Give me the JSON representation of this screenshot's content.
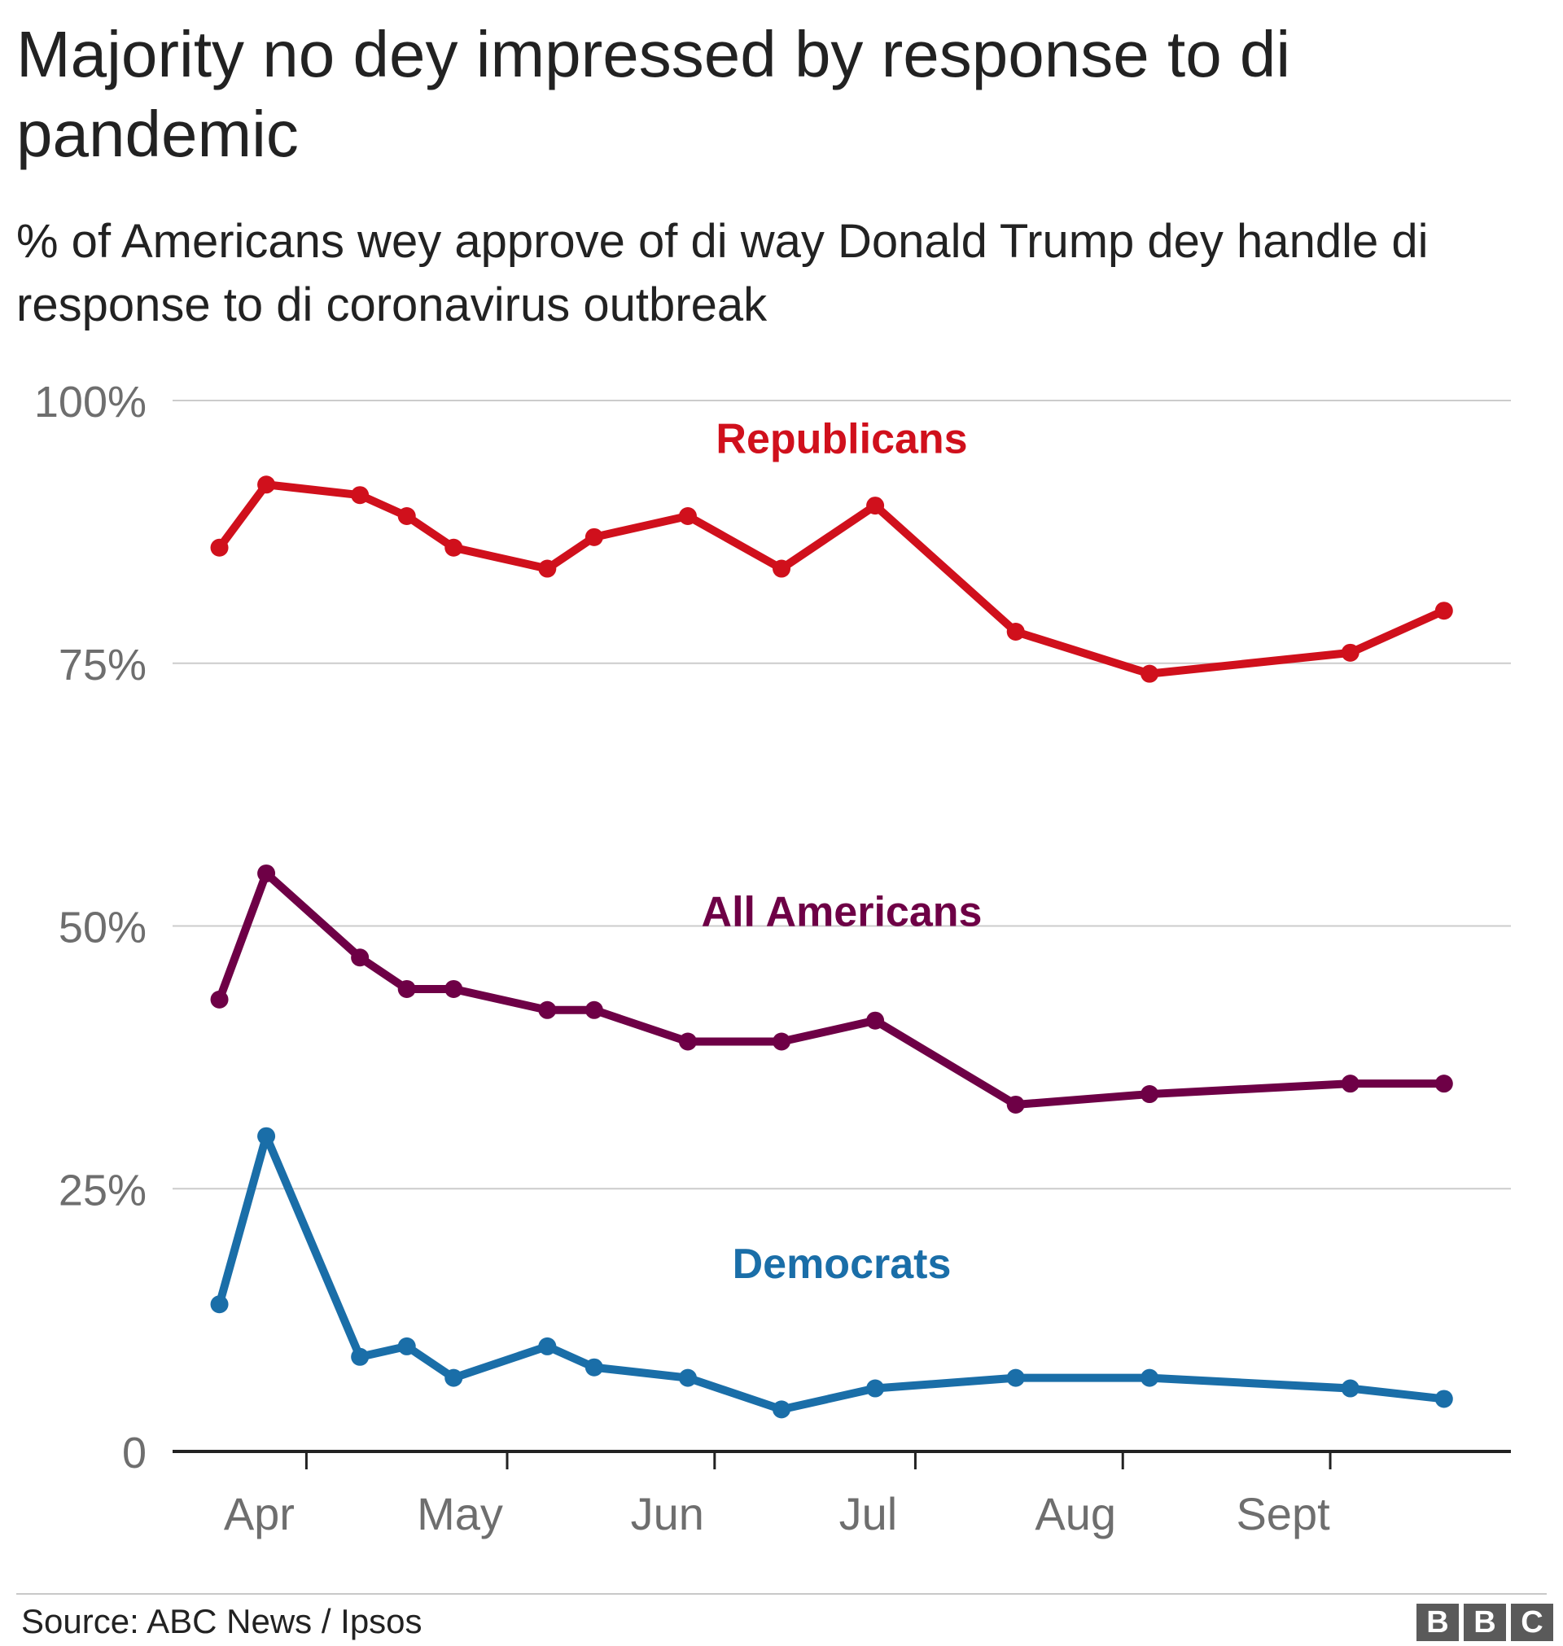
{
  "title": "Majority no dey impressed by response to di pandemic",
  "subtitle": "% of Americans wey approve of di way Donald Trump dey handle di response to di coronavirus outbreak",
  "source": "Source: ABC News / Ipsos",
  "logo": [
    "B",
    "B",
    "C"
  ],
  "chart_data": {
    "type": "line",
    "title": "Majority no dey impressed by response to di pandemic",
    "subtitle": "% of Americans wey approve of di way Donald Trump dey handle di response to di coronavirus outbreak",
    "xlabel": "",
    "ylabel": "",
    "ylim": [
      0,
      100
    ],
    "yticks": [
      0,
      25,
      50,
      75,
      100
    ],
    "ytick_labels": [
      "0",
      "25%",
      "50%",
      "75%",
      "100%"
    ],
    "x_domain": [
      0,
      200
    ],
    "x_ticks": [
      {
        "label": "Apr",
        "x": 20
      },
      {
        "label": "May",
        "x": 50
      },
      {
        "label": "Jun",
        "x": 81
      },
      {
        "label": "Jul",
        "x": 111
      },
      {
        "label": "Aug",
        "x": 142
      },
      {
        "label": "Sept",
        "x": 173
      }
    ],
    "x": [
      7,
      14,
      28,
      35,
      42,
      56,
      63,
      77,
      91,
      105,
      126,
      146,
      176,
      190
    ],
    "series": [
      {
        "name": "Republicans",
        "color": "#d0101c",
        "values": [
          86,
          92,
          91,
          89,
          86,
          84,
          87,
          89,
          84,
          90,
          78,
          74,
          76,
          80
        ],
        "label_x": 100,
        "label_y": 95
      },
      {
        "name": "All Americans",
        "color": "#6e0046",
        "values": [
          43,
          55,
          47,
          44,
          44,
          42,
          42,
          39,
          39,
          41,
          33,
          34,
          35,
          35
        ],
        "label_x": 100,
        "label_y": 50
      },
      {
        "name": "Democrats",
        "color": "#1a6ea8",
        "values": [
          14,
          30,
          9,
          10,
          7,
          10,
          8,
          7,
          4,
          6,
          7,
          7,
          6,
          5
        ],
        "label_x": 100,
        "label_y": 16.5
      }
    ]
  }
}
